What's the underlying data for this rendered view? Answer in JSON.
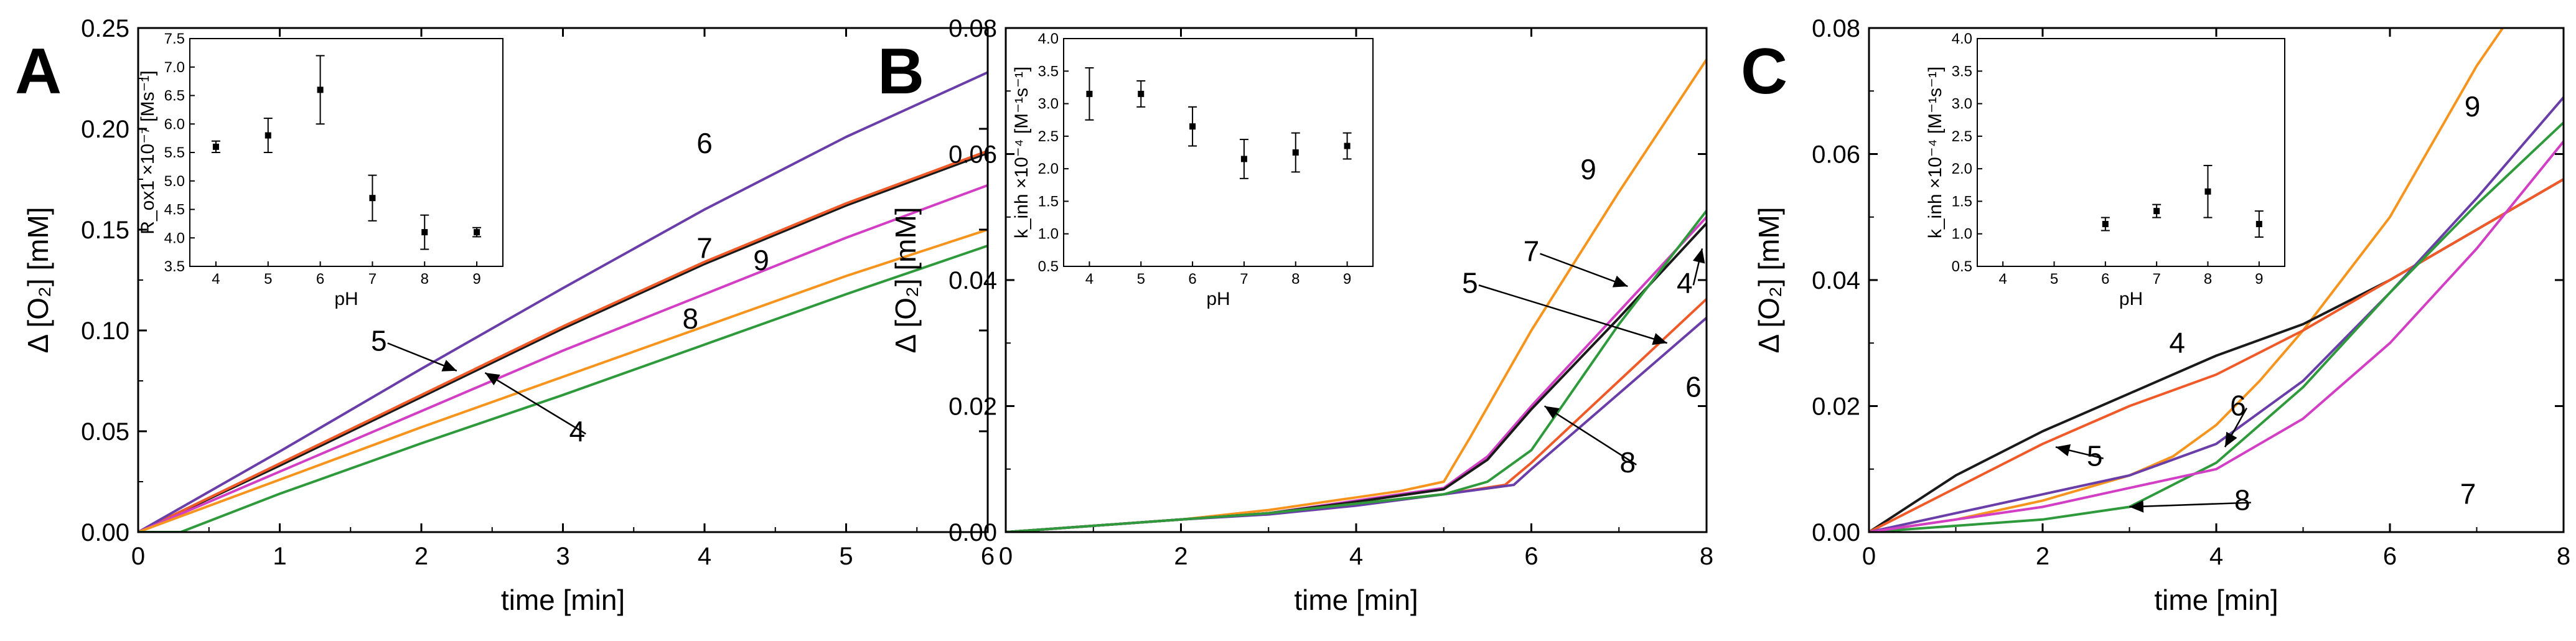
{
  "colors": {
    "4": "#1a1a1a",
    "5": "#f05a28",
    "6": "#6a3ea8",
    "7": "#d23ec4",
    "8": "#2e9a3c",
    "9": "#f7941d"
  },
  "chart_data": [
    {
      "panel": "A",
      "type": "line",
      "xlabel": "time [min]",
      "ylabel": "Δ [O₂] [mM]",
      "xlim": [
        0,
        6
      ],
      "ylim": [
        0,
        0.25
      ],
      "xticks": [
        "0",
        "1",
        "2",
        "3",
        "4",
        "5",
        "6"
      ],
      "yticks": [
        "0.00",
        "0.05",
        "0.10",
        "0.15",
        "0.20",
        "0.25"
      ],
      "series": [
        {
          "name": "4",
          "x": [
            0,
            1,
            2,
            3,
            4,
            5,
            6
          ],
          "y": [
            0,
            0.033,
            0.067,
            0.101,
            0.133,
            0.162,
            0.188
          ]
        },
        {
          "name": "5",
          "x": [
            0,
            1,
            2,
            3,
            4,
            5,
            6
          ],
          "y": [
            0,
            0.034,
            0.068,
            0.102,
            0.134,
            0.163,
            0.189
          ]
        },
        {
          "name": "6",
          "x": [
            0,
            1,
            2,
            3,
            4,
            5,
            6
          ],
          "y": [
            0,
            0.04,
            0.081,
            0.121,
            0.16,
            0.196,
            0.228
          ]
        },
        {
          "name": "7",
          "x": [
            0,
            1,
            2,
            3,
            4,
            5,
            6
          ],
          "y": [
            0,
            0.03,
            0.06,
            0.09,
            0.118,
            0.146,
            0.172
          ]
        },
        {
          "name": "9",
          "x": [
            0,
            1,
            2,
            3,
            4,
            5,
            6
          ],
          "y": [
            0,
            0.026,
            0.052,
            0.077,
            0.102,
            0.127,
            0.15
          ]
        },
        {
          "name": "8",
          "x": [
            0,
            0.3,
            1,
            2,
            3,
            4,
            5,
            6
          ],
          "y": [
            0,
            0.0,
            0.019,
            0.044,
            0.068,
            0.093,
            0.118,
            0.142
          ]
        }
      ],
      "annotations": [
        {
          "text": "6",
          "x": 4.0,
          "y": 0.188
        },
        {
          "text": "7",
          "x": 4.0,
          "y": 0.136
        },
        {
          "text": "9",
          "x": 4.4,
          "y": 0.13
        },
        {
          "text": "8",
          "x": 3.9,
          "y": 0.101
        },
        {
          "text": "5",
          "x": 1.7,
          "y": 0.09,
          "arrow_to": [
            2.25,
            0.08
          ]
        },
        {
          "text": "4",
          "x": 3.1,
          "y": 0.045,
          "arrow_to": [
            2.45,
            0.079
          ]
        }
      ],
      "inset": {
        "xlabel": "pH",
        "ylabel": "R_ox1 ×10⁻⁷ [Ms⁻¹]",
        "xlim": [
          3.5,
          9.5
        ],
        "ylim": [
          3.5,
          7.5
        ],
        "xticks": [
          "4",
          "5",
          "6",
          "7",
          "8",
          "9"
        ],
        "yticks": [
          "3.5",
          "4.0",
          "4.5",
          "5.0",
          "5.5",
          "6.0",
          "6.5",
          "7.0",
          "7.5"
        ],
        "points": [
          {
            "x": 4,
            "y": 5.6,
            "err": 0.1
          },
          {
            "x": 5,
            "y": 5.8,
            "err": 0.3
          },
          {
            "x": 6,
            "y": 6.6,
            "err": 0.6
          },
          {
            "x": 7,
            "y": 4.7,
            "err": 0.4
          },
          {
            "x": 8,
            "y": 4.1,
            "err": 0.3
          },
          {
            "x": 9,
            "y": 4.1,
            "err": 0.08
          }
        ]
      }
    },
    {
      "panel": "B",
      "type": "line",
      "xlabel": "time [min]",
      "ylabel": "Δ [O₂] [mM]",
      "xlim": [
        0,
        8
      ],
      "ylim": [
        0,
        0.08
      ],
      "xticks": [
        "0",
        "2",
        "4",
        "6",
        "8"
      ],
      "yticks": [
        "0.00",
        "0.02",
        "0.04",
        "0.06",
        "0.08"
      ],
      "series": [
        {
          "name": "9",
          "x": [
            0,
            1,
            2,
            3,
            4,
            4.5,
            5,
            5.3,
            6,
            7,
            8
          ],
          "y": [
            0,
            0.001,
            0.002,
            0.0035,
            0.0055,
            0.0065,
            0.008,
            0.015,
            0.032,
            0.054,
            0.075
          ]
        },
        {
          "name": "7",
          "x": [
            0,
            1,
            2,
            3,
            4,
            5,
            5.5,
            6,
            7,
            8
          ],
          "y": [
            0,
            0.001,
            0.002,
            0.003,
            0.005,
            0.007,
            0.012,
            0.02,
            0.035,
            0.05
          ]
        },
        {
          "name": "4",
          "x": [
            0,
            1,
            2,
            3,
            4,
            5,
            5.5,
            6,
            7,
            8
          ],
          "y": [
            0,
            0.001,
            0.002,
            0.003,
            0.0048,
            0.0068,
            0.0115,
            0.0195,
            0.034,
            0.049
          ]
        },
        {
          "name": "5",
          "x": [
            0,
            1,
            2,
            3,
            4,
            5,
            5.7,
            6,
            7,
            8
          ],
          "y": [
            0,
            0.001,
            0.002,
            0.003,
            0.0045,
            0.006,
            0.0075,
            0.011,
            0.024,
            0.037
          ]
        },
        {
          "name": "6",
          "x": [
            0,
            1,
            2,
            3,
            4,
            5,
            5.8,
            6,
            7,
            8
          ],
          "y": [
            0,
            0.001,
            0.002,
            0.0028,
            0.0042,
            0.006,
            0.0075,
            0.01,
            0.022,
            0.034
          ]
        },
        {
          "name": "8",
          "x": [
            0,
            1,
            2,
            3,
            4,
            5,
            5.5,
            6,
            7,
            8
          ],
          "y": [
            0,
            0.001,
            0.002,
            0.003,
            0.0045,
            0.006,
            0.008,
            0.013,
            0.033,
            0.051
          ]
        }
      ],
      "annotations": [
        {
          "text": "9",
          "x": 6.65,
          "y": 0.056
        },
        {
          "text": "7",
          "x": 6.0,
          "y": 0.043,
          "arrow_to": [
            7.1,
            0.039
          ]
        },
        {
          "text": "4",
          "x": 7.75,
          "y": 0.038,
          "arrow_to": [
            7.95,
            0.045
          ]
        },
        {
          "text": "5",
          "x": 5.3,
          "y": 0.038,
          "arrow_to": [
            7.55,
            0.03
          ]
        },
        {
          "text": "6",
          "x": 7.85,
          "y": 0.0215
        },
        {
          "text": "8",
          "x": 7.1,
          "y": 0.0095,
          "arrow_to": [
            6.15,
            0.02
          ]
        }
      ],
      "inset": {
        "xlabel": "pH",
        "ylabel": "k_inh ×10⁻⁴ [M⁻¹s⁻¹]",
        "xlim": [
          3.5,
          9.5
        ],
        "ylim": [
          0.5,
          4.0
        ],
        "xticks": [
          "4",
          "5",
          "6",
          "7",
          "8",
          "9"
        ],
        "yticks": [
          "0.5",
          "1.0",
          "1.5",
          "2.0",
          "2.5",
          "3.0",
          "3.5",
          "4.0"
        ],
        "points": [
          {
            "x": 4,
            "y": 3.15,
            "err": 0.4
          },
          {
            "x": 5,
            "y": 3.15,
            "err": 0.2
          },
          {
            "x": 6,
            "y": 2.65,
            "err": 0.3
          },
          {
            "x": 7,
            "y": 2.15,
            "err": 0.3
          },
          {
            "x": 8,
            "y": 2.25,
            "err": 0.3
          },
          {
            "x": 9,
            "y": 2.35,
            "err": 0.2
          }
        ]
      }
    },
    {
      "panel": "C",
      "type": "line",
      "xlabel": "time [min]",
      "ylabel": "Δ [O₂] [mM]",
      "xlim": [
        0,
        8
      ],
      "ylim": [
        0,
        0.08
      ],
      "xticks": [
        "0",
        "2",
        "4",
        "6",
        "8"
      ],
      "yticks": [
        "0.00",
        "0.02",
        "0.04",
        "0.06",
        "0.08"
      ],
      "series": [
        {
          "name": "9",
          "x": [
            0,
            1,
            2,
            3,
            3.5,
            4,
            4.5,
            5,
            6,
            7,
            7.3
          ],
          "y": [
            0,
            0.002,
            0.005,
            0.009,
            0.012,
            0.017,
            0.024,
            0.032,
            0.05,
            0.074,
            0.08
          ]
        },
        {
          "name": "4",
          "x": [
            0,
            1,
            2,
            3,
            4,
            5,
            6,
            7,
            8
          ],
          "y": [
            0,
            0.009,
            0.016,
            0.022,
            0.028,
            0.033,
            0.04,
            0.048,
            0.056
          ]
        },
        {
          "name": "5",
          "x": [
            0,
            1,
            2,
            3,
            4,
            5,
            6,
            7,
            8
          ],
          "y": [
            0,
            0.007,
            0.014,
            0.02,
            0.025,
            0.032,
            0.04,
            0.048,
            0.056
          ]
        },
        {
          "name": "6",
          "x": [
            0,
            1,
            2,
            3,
            4,
            5,
            6,
            7,
            8
          ],
          "y": [
            0,
            0.003,
            0.006,
            0.009,
            0.014,
            0.024,
            0.038,
            0.053,
            0.069
          ]
        },
        {
          "name": "8",
          "x": [
            0,
            1,
            2,
            3,
            4,
            5,
            6,
            7,
            8
          ],
          "y": [
            0,
            0.001,
            0.002,
            0.004,
            0.011,
            0.023,
            0.038,
            0.052,
            0.065
          ]
        },
        {
          "name": "7",
          "x": [
            0,
            1,
            2,
            3,
            4,
            5,
            6,
            7,
            8
          ],
          "y": [
            0,
            0.002,
            0.004,
            0.007,
            0.01,
            0.018,
            0.03,
            0.045,
            0.062
          ]
        }
      ],
      "annotations": [
        {
          "text": "9",
          "x": 6.95,
          "y": 0.066
        },
        {
          "text": "4",
          "x": 3.55,
          "y": 0.0285
        },
        {
          "text": "6",
          "x": 4.25,
          "y": 0.0185,
          "arrow_to": [
            4.1,
            0.0135
          ]
        },
        {
          "text": "5",
          "x": 2.6,
          "y": 0.0105,
          "arrow_to": [
            2.15,
            0.0135
          ]
        },
        {
          "text": "8",
          "x": 4.3,
          "y": 0.0035,
          "arrow_to": [
            3.0,
            0.004
          ]
        },
        {
          "text": "7",
          "x": 6.9,
          "y": 0.0045
        }
      ],
      "inset": {
        "xlabel": "pH",
        "ylabel": "k_inh ×10⁻⁴ [M⁻¹s⁻¹]",
        "xlim": [
          3.5,
          9.5
        ],
        "ylim": [
          0.5,
          4.0
        ],
        "xticks": [
          "4",
          "5",
          "6",
          "7",
          "8",
          "9"
        ],
        "yticks": [
          "0.5",
          "1.0",
          "1.5",
          "2.0",
          "2.5",
          "3.0",
          "3.5",
          "4.0"
        ],
        "points": [
          {
            "x": 6,
            "y": 1.15,
            "err": 0.1
          },
          {
            "x": 7,
            "y": 1.35,
            "err": 0.1
          },
          {
            "x": 8,
            "y": 1.65,
            "err": 0.4
          },
          {
            "x": 9,
            "y": 1.15,
            "err": 0.2
          }
        ]
      }
    }
  ]
}
